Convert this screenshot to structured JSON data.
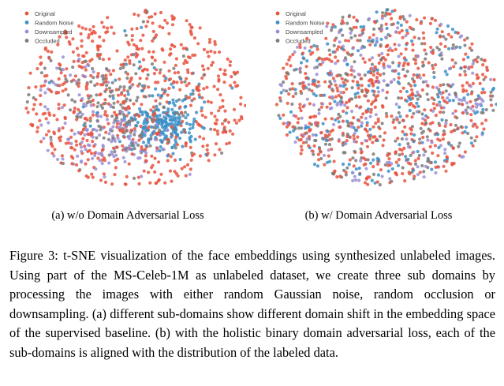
{
  "figure": {
    "number_label": "Figure 3:",
    "caption_text": "t-SNE visualization of the face embeddings using synthesized unlabeled images. Using part of the MS-Celeb-1M as unlabeled dataset, we create three sub domains by processing the images with either random Gaussian noise, random occlusion or downsampling. (a) different sub-domains show different domain shift in the embedding space of the supervised baseline. (b) with the holistic binary domain adversarial loss, each of the sub-domains is aligned with the distribution of the labeled data."
  },
  "colors": {
    "original": "#e8533f",
    "random_noise": "#3a8fc8",
    "downsampled": "#9a8fd6",
    "occluded": "#7b7b7b"
  },
  "chart_data": [
    {
      "type": "scatter",
      "title": "",
      "caption": "(a) w/o Domain Adversarial Loss",
      "legend_position": "top-left",
      "grid": false,
      "series": [
        {
          "name": "Original",
          "color": "#e8533f",
          "distribution": "spread over full cloud"
        },
        {
          "name": "Random Noise",
          "color": "#3a8fc8",
          "distribution": "concentrated cluster lower-right"
        },
        {
          "name": "Downsampled",
          "color": "#9a8fd6",
          "distribution": "concentrated lower-left"
        },
        {
          "name": "Occluded",
          "color": "#7b7b7b",
          "distribution": "center region"
        }
      ]
    },
    {
      "type": "scatter",
      "title": "",
      "caption": "(b) w/ Domain Adversarial Loss",
      "legend_position": "top-left",
      "grid": false,
      "series": [
        {
          "name": "Original",
          "color": "#e8533f",
          "distribution": "uniform over cloud"
        },
        {
          "name": "Random Noise",
          "color": "#3a8fc8",
          "distribution": "uniform, aligned"
        },
        {
          "name": "Downsampled",
          "color": "#9a8fd6",
          "distribution": "uniform, aligned"
        },
        {
          "name": "Occluded",
          "color": "#7b7b7b",
          "distribution": "uniform, aligned"
        }
      ]
    }
  ]
}
